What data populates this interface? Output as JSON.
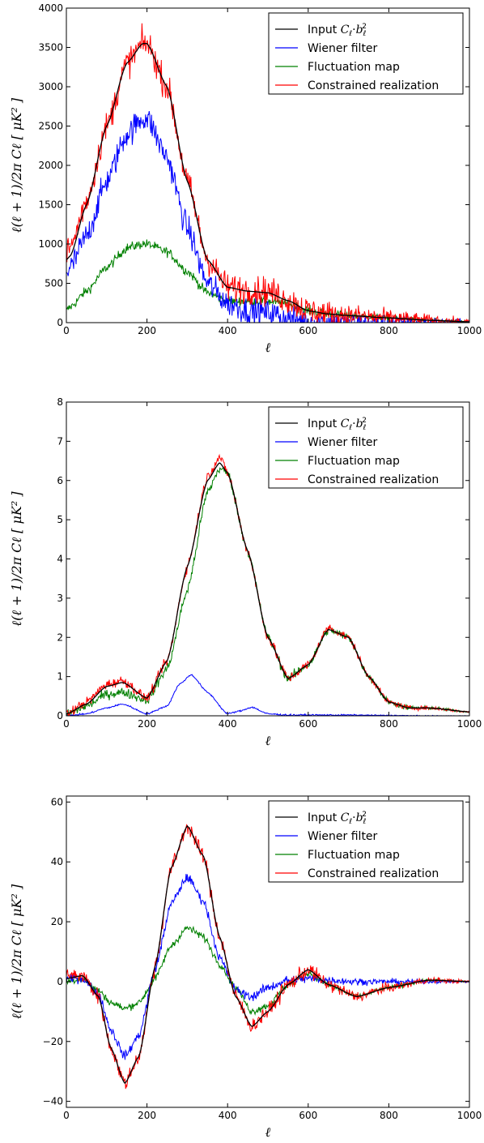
{
  "legend": {
    "input_main": "Input ",
    "input_c": "C",
    "input_c_sub": "ℓ",
    "input_dot": "·",
    "input_b": "b",
    "input_b_sub": "ℓ",
    "input_b_sup": "2",
    "wiener": "Wiener filter",
    "fluctuation": "Fluctuation map",
    "constrained": "Constrained realization"
  },
  "colors": {
    "input": "#000000",
    "wiener": "#0000ff",
    "fluctuation": "#008000",
    "constrained": "#ff0000"
  },
  "xlabel": "ℓ",
  "ylabel": "ℓ(ℓ + 1)/2π Cℓ  [ μK² ]",
  "chart_data": [
    {
      "type": "line",
      "panel": "top",
      "xlim": [
        0,
        1000
      ],
      "ylim": [
        0,
        4000
      ],
      "xticks": [
        "0",
        "200",
        "400",
        "600",
        "800",
        "1000"
      ],
      "yticks": [
        "0",
        "500",
        "1000",
        "1500",
        "2000",
        "2500",
        "3000",
        "3500",
        "4000"
      ],
      "xlabel": "ℓ",
      "ylabel": "ℓ(ℓ + 1)/2π Cℓ  [ μK² ]",
      "legend_position": "top-right",
      "series": [
        {
          "name": "Input Cℓ·bℓ²",
          "key": "input",
          "noise": 0,
          "x": [
            0,
            10,
            50,
            100,
            150,
            190,
            200,
            250,
            300,
            350,
            400,
            450,
            500,
            550,
            600,
            650,
            700,
            800,
            900,
            1000
          ],
          "y": [
            800,
            850,
            1500,
            2500,
            3300,
            3550,
            3550,
            3000,
            1800,
            800,
            450,
            400,
            380,
            280,
            150,
            110,
            90,
            60,
            30,
            10
          ]
        },
        {
          "name": "Wiener filter",
          "key": "wiener",
          "noise": 170,
          "x": [
            0,
            10,
            50,
            100,
            150,
            190,
            200,
            250,
            300,
            350,
            400,
            450,
            500,
            550,
            600,
            650,
            700,
            800,
            900,
            1000
          ],
          "y": [
            650,
            700,
            1100,
            1800,
            2400,
            2600,
            2600,
            2100,
            1200,
            500,
            250,
            150,
            130,
            60,
            20,
            10,
            5,
            2,
            1,
            0
          ]
        },
        {
          "name": "Fluctuation map",
          "key": "fluctuation",
          "noise": 60,
          "x": [
            0,
            10,
            50,
            100,
            150,
            190,
            200,
            250,
            300,
            350,
            400,
            450,
            500,
            550,
            600,
            650,
            700,
            800,
            900,
            1000
          ],
          "y": [
            150,
            200,
            400,
            700,
            950,
            1000,
            1000,
            900,
            650,
            380,
            270,
            270,
            270,
            240,
            150,
            110,
            90,
            60,
            30,
            10
          ]
        },
        {
          "name": "Constrained realization",
          "key": "constrained",
          "noise": 180,
          "x": [
            0,
            10,
            50,
            100,
            150,
            190,
            200,
            250,
            300,
            350,
            400,
            450,
            500,
            550,
            600,
            650,
            700,
            800,
            900,
            1000
          ],
          "y": [
            900,
            950,
            1550,
            2500,
            3300,
            3550,
            3550,
            3000,
            1800,
            800,
            450,
            420,
            400,
            290,
            150,
            110,
            90,
            60,
            30,
            10
          ]
        }
      ]
    },
    {
      "type": "line",
      "panel": "middle",
      "xlim": [
        0,
        1000
      ],
      "ylim": [
        0,
        8
      ],
      "xticks": [
        "0",
        "200",
        "400",
        "600",
        "800",
        "1000"
      ],
      "yticks": [
        "0",
        "1",
        "2",
        "3",
        "4",
        "5",
        "6",
        "7",
        "8"
      ],
      "xlabel": "ℓ",
      "ylabel": "ℓ(ℓ + 1)/2π Cℓ  [ μK² ]",
      "legend_position": "top-right",
      "series": [
        {
          "name": "Input Cℓ·bℓ²",
          "key": "input",
          "noise": 0,
          "x": [
            0,
            50,
            100,
            140,
            200,
            250,
            300,
            350,
            380,
            400,
            450,
            500,
            550,
            600,
            650,
            700,
            750,
            800,
            850,
            900,
            1000
          ],
          "y": [
            0.05,
            0.3,
            0.75,
            0.85,
            0.45,
            1.4,
            3.8,
            6.0,
            6.45,
            6.2,
            4.2,
            2.0,
            0.95,
            1.3,
            2.2,
            2.0,
            1.0,
            0.35,
            0.2,
            0.2,
            0.1
          ]
        },
        {
          "name": "Wiener filter",
          "key": "wiener",
          "noise": 0.02,
          "x": [
            0,
            50,
            100,
            140,
            200,
            250,
            280,
            310,
            350,
            400,
            430,
            460,
            500,
            550,
            600,
            700,
            800,
            900,
            1000
          ],
          "y": [
            0.0,
            0.05,
            0.2,
            0.3,
            0.05,
            0.25,
            0.8,
            1.05,
            0.6,
            0.05,
            0.12,
            0.22,
            0.05,
            0.02,
            0.02,
            0.02,
            0.01,
            0.0,
            0.0
          ]
        },
        {
          "name": "Fluctuation map",
          "key": "fluctuation",
          "noise": 0.12,
          "x": [
            0,
            50,
            100,
            140,
            200,
            250,
            300,
            350,
            380,
            400,
            450,
            500,
            550,
            600,
            650,
            700,
            750,
            800,
            850,
            900,
            1000
          ],
          "y": [
            0.02,
            0.25,
            0.55,
            0.6,
            0.4,
            1.2,
            3.2,
            5.7,
            6.3,
            6.2,
            4.2,
            2.0,
            0.95,
            1.3,
            2.2,
            2.0,
            1.0,
            0.35,
            0.2,
            0.2,
            0.1
          ]
        },
        {
          "name": "Constrained realization",
          "key": "constrained",
          "noise": 0.12,
          "x": [
            0,
            50,
            100,
            140,
            200,
            250,
            300,
            350,
            380,
            400,
            450,
            500,
            550,
            600,
            650,
            700,
            750,
            800,
            850,
            900,
            1000
          ],
          "y": [
            0.05,
            0.35,
            0.8,
            0.9,
            0.45,
            1.4,
            3.8,
            6.1,
            6.6,
            6.2,
            4.2,
            2.0,
            0.95,
            1.3,
            2.25,
            2.0,
            1.0,
            0.35,
            0.2,
            0.2,
            0.1
          ]
        }
      ]
    },
    {
      "type": "line",
      "panel": "bottom",
      "xlim": [
        0,
        1000
      ],
      "ylim": [
        -42,
        62
      ],
      "xticks": [
        "0",
        "200",
        "400",
        "600",
        "800",
        "1000"
      ],
      "yticks": [
        "−40",
        "−20",
        "0",
        "20",
        "40",
        "60"
      ],
      "ytick_values": [
        -40,
        -20,
        0,
        20,
        40,
        60
      ],
      "xlabel": "ℓ",
      "ylabel": "ℓ(ℓ + 1)/2π Cℓ  [ μK² ]",
      "legend_position": "top-right",
      "series": [
        {
          "name": "Input Cℓ·bℓ²",
          "key": "input",
          "noise": 0,
          "x": [
            0,
            40,
            80,
            110,
            145,
            180,
            220,
            260,
            300,
            340,
            380,
            420,
            460,
            500,
            550,
            600,
            650,
            720,
            800,
            900,
            1000
          ],
          "y": [
            1,
            2,
            -5,
            -22,
            -34,
            -25,
            5,
            38,
            52,
            42,
            15,
            -5,
            -15,
            -10,
            -1,
            4,
            -1,
            -5,
            -2,
            0.5,
            0
          ]
        },
        {
          "name": "Wiener filter",
          "key": "wiener",
          "noise": 1.5,
          "x": [
            0,
            40,
            80,
            110,
            145,
            180,
            220,
            260,
            300,
            340,
            380,
            420,
            460,
            500,
            550,
            600,
            650,
            720,
            800,
            900,
            1000
          ],
          "y": [
            1,
            1,
            -4,
            -16,
            -25,
            -18,
            4,
            26,
            35,
            27,
            8,
            -3,
            -5,
            -2,
            0.5,
            1,
            0.5,
            0,
            0,
            0,
            0
          ]
        },
        {
          "name": "Fluctuation map",
          "key": "fluctuation",
          "noise": 1.2,
          "x": [
            0,
            40,
            80,
            110,
            145,
            180,
            220,
            260,
            300,
            340,
            380,
            420,
            460,
            500,
            550,
            600,
            650,
            720,
            800,
            900,
            1000
          ],
          "y": [
            0,
            1,
            -3,
            -7,
            -9,
            -7,
            1,
            12,
            18,
            15,
            6,
            -2,
            -10,
            -8,
            -1,
            3,
            -1,
            -5,
            -2,
            0.5,
            0
          ]
        },
        {
          "name": "Constrained realization",
          "key": "constrained",
          "noise": 2.5,
          "x": [
            0,
            40,
            80,
            110,
            145,
            180,
            220,
            260,
            300,
            340,
            380,
            420,
            460,
            500,
            550,
            600,
            650,
            720,
            800,
            900,
            1000
          ],
          "y": [
            2,
            2,
            -5,
            -22,
            -34,
            -25,
            5,
            38,
            52,
            42,
            15,
            -5,
            -15,
            -10,
            -1,
            4,
            -1,
            -5,
            -2,
            0.5,
            0
          ]
        }
      ]
    }
  ]
}
